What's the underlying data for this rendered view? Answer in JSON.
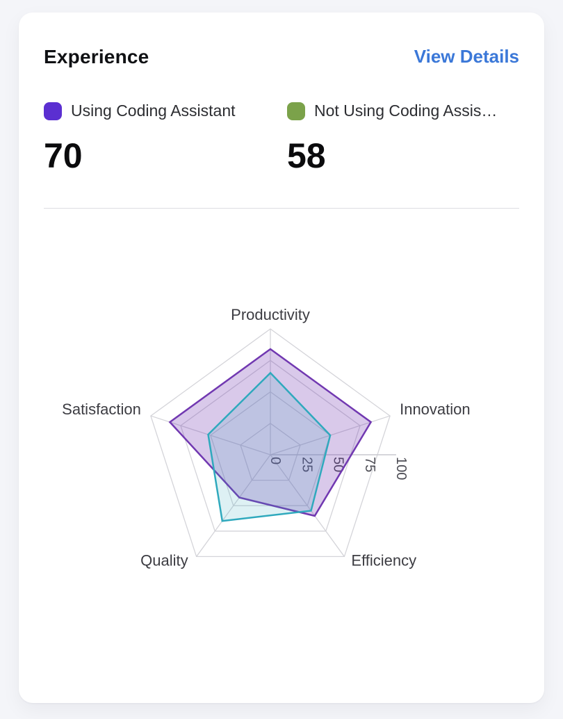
{
  "card": {
    "title": "Experience",
    "link_label": "View Details"
  },
  "legend": {
    "items": [
      {
        "label": "Using Coding Assistant",
        "value": "70",
        "color": "#5b2fd1"
      },
      {
        "label": "Not Using Coding Assis…",
        "value": "58",
        "color": "#7ba24a"
      }
    ]
  },
  "chart_data": {
    "type": "radar",
    "title": "",
    "categories": [
      "Productivity",
      "Innovation",
      "Efficiency",
      "Quality",
      "Satisfaction"
    ],
    "series": [
      {
        "name": "Using Coding Assistant",
        "values": [
          84,
          84,
          60,
          42,
          84
        ],
        "stroke": "#7138b1",
        "fill": "#7138b1",
        "fill_opacity": 0.27
      },
      {
        "name": "Not Using Coding Assistant",
        "values": [
          65,
          50,
          55,
          65,
          52
        ],
        "stroke": "#2fa9bd",
        "fill": "#2fa9bd",
        "fill_opacity": 0.16
      }
    ],
    "r_axis": {
      "min": 0,
      "max": 100,
      "ticks": [
        0,
        25,
        50,
        75,
        100
      ],
      "tick_labels": [
        "0",
        "25",
        "50",
        "75",
        "100"
      ]
    },
    "grid": "on",
    "grid_color": "#d4d4d9",
    "axis_line_color": "#c9c9cf",
    "label_color": "#3c3c42",
    "tick_color": "#4c4c54",
    "legend_position": "top-outside"
  }
}
